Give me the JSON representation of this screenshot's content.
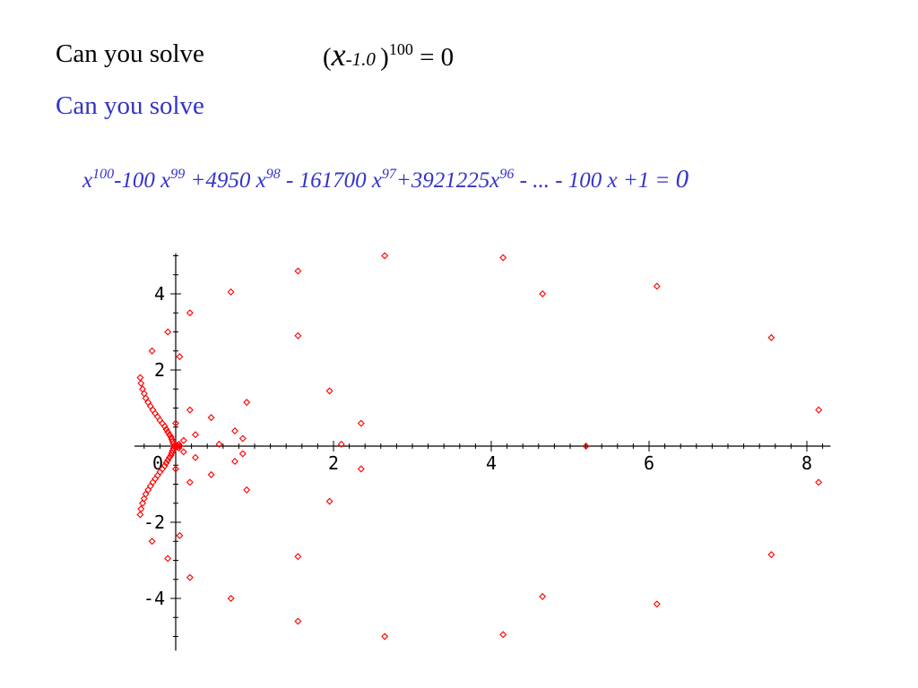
{
  "heading": {
    "prompt": "Can you solve",
    "eq_open": "(",
    "eq_x": "x",
    "eq_shift": "-1.0 ",
    "eq_close": ")",
    "eq_exp": "100",
    "eq_rhs": " = 0"
  },
  "subheading": "Can you solve",
  "polynomial": {
    "t1_base": "x",
    "t1_exp": "100",
    "t2_base": "-100 x",
    "t2_exp": "99",
    "t3_base": " +4950 x",
    "t3_exp": "98",
    "t4_base": " - 161700 x",
    "t4_exp": "97",
    "t5_base": "+3921225x",
    "t5_exp": "96",
    "tail": " - ... - 100 x +1 = ",
    "rhs": "0"
  },
  "colors": {
    "text": "#000000",
    "accent": "#3333cc",
    "points": "#ff0000",
    "axis": "#000000"
  },
  "chart_data": {
    "type": "scatter",
    "title": "",
    "xlabel": "",
    "ylabel": "",
    "xlim": [
      -0.5,
      8.3
    ],
    "ylim": [
      -5.3,
      5.3
    ],
    "grid": false,
    "marker": "diamond",
    "x_ticks": [
      0,
      2,
      4,
      6,
      8
    ],
    "y_ticks": [
      -4,
      -2,
      2,
      4
    ],
    "x_tick_labels": [
      "0",
      "2",
      "4",
      "6",
      "8"
    ],
    "y_tick_labels": [
      "-4",
      "-2",
      "2",
      "4"
    ],
    "series": [
      {
        "points": [
          [
            2.65,
            5.0
          ],
          [
            2.65,
            -5.0
          ],
          [
            4.15,
            4.95
          ],
          [
            4.15,
            -4.95
          ],
          [
            1.55,
            4.6
          ],
          [
            1.55,
            -4.6
          ],
          [
            0.7,
            4.05
          ],
          [
            0.7,
            -4.0
          ],
          [
            4.65,
            4.0
          ],
          [
            4.65,
            -3.95
          ],
          [
            6.1,
            4.2
          ],
          [
            6.1,
            -4.15
          ],
          [
            7.55,
            2.85
          ],
          [
            7.55,
            -2.85
          ],
          [
            8.15,
            0.95
          ],
          [
            8.15,
            -0.95
          ],
          [
            5.2,
            0.0
          ],
          [
            2.1,
            0.05
          ],
          [
            1.55,
            2.9
          ],
          [
            1.55,
            -2.9
          ],
          [
            0.18,
            3.5
          ],
          [
            0.18,
            -3.45
          ],
          [
            -0.1,
            3.0
          ],
          [
            -0.1,
            -2.95
          ],
          [
            0.05,
            2.35
          ],
          [
            0.05,
            -2.35
          ],
          [
            -0.3,
            2.5
          ],
          [
            -0.3,
            -2.5
          ],
          [
            1.95,
            1.45
          ],
          [
            1.95,
            -1.45
          ],
          [
            2.35,
            0.6
          ],
          [
            2.35,
            -0.6
          ],
          [
            0.9,
            1.15
          ],
          [
            0.9,
            -1.15
          ],
          [
            0.45,
            0.75
          ],
          [
            0.45,
            -0.75
          ],
          [
            0.75,
            0.4
          ],
          [
            0.75,
            -0.4
          ],
          [
            0.85,
            0.2
          ],
          [
            0.85,
            -0.2
          ],
          [
            0.55,
            0.05
          ],
          [
            0.18,
            0.95
          ],
          [
            0.18,
            -0.95
          ],
          [
            0.25,
            0.3
          ],
          [
            0.25,
            -0.3
          ],
          [
            0.0,
            0.6
          ],
          [
            0.0,
            -0.6
          ],
          [
            0.1,
            0.15
          ],
          [
            0.1,
            -0.15
          ],
          [
            -0.45,
            1.8
          ],
          [
            -0.44,
            1.65
          ],
          [
            -0.42,
            1.5
          ],
          [
            -0.4,
            1.38
          ],
          [
            -0.38,
            1.26
          ],
          [
            -0.35,
            1.15
          ],
          [
            -0.32,
            1.05
          ],
          [
            -0.29,
            0.95
          ],
          [
            -0.26,
            0.86
          ],
          [
            -0.23,
            0.77
          ],
          [
            -0.2,
            0.68
          ],
          [
            -0.17,
            0.6
          ],
          [
            -0.14,
            0.52
          ],
          [
            -0.12,
            0.44
          ],
          [
            -0.1,
            0.37
          ],
          [
            -0.08,
            0.3
          ],
          [
            -0.06,
            0.24
          ],
          [
            -0.05,
            0.18
          ],
          [
            -0.04,
            0.12
          ],
          [
            -0.03,
            0.06
          ],
          [
            -0.45,
            -1.8
          ],
          [
            -0.44,
            -1.65
          ],
          [
            -0.42,
            -1.5
          ],
          [
            -0.4,
            -1.38
          ],
          [
            -0.38,
            -1.26
          ],
          [
            -0.35,
            -1.15
          ],
          [
            -0.32,
            -1.05
          ],
          [
            -0.29,
            -0.95
          ],
          [
            -0.26,
            -0.86
          ],
          [
            -0.23,
            -0.77
          ],
          [
            -0.2,
            -0.68
          ],
          [
            -0.17,
            -0.6
          ],
          [
            -0.14,
            -0.52
          ],
          [
            -0.12,
            -0.44
          ],
          [
            -0.1,
            -0.37
          ],
          [
            -0.08,
            -0.3
          ],
          [
            -0.06,
            -0.24
          ],
          [
            -0.05,
            -0.18
          ],
          [
            -0.04,
            -0.12
          ],
          [
            -0.03,
            -0.06
          ],
          [
            -0.02,
            0.0
          ],
          [
            -0.01,
            0.03
          ],
          [
            -0.01,
            -0.03
          ],
          [
            0.0,
            0.0
          ],
          [
            0.02,
            0.02
          ],
          [
            0.02,
            -0.02
          ],
          [
            0.04,
            0.05
          ],
          [
            0.04,
            -0.05
          ],
          [
            0.05,
            0.0
          ]
        ]
      }
    ]
  }
}
